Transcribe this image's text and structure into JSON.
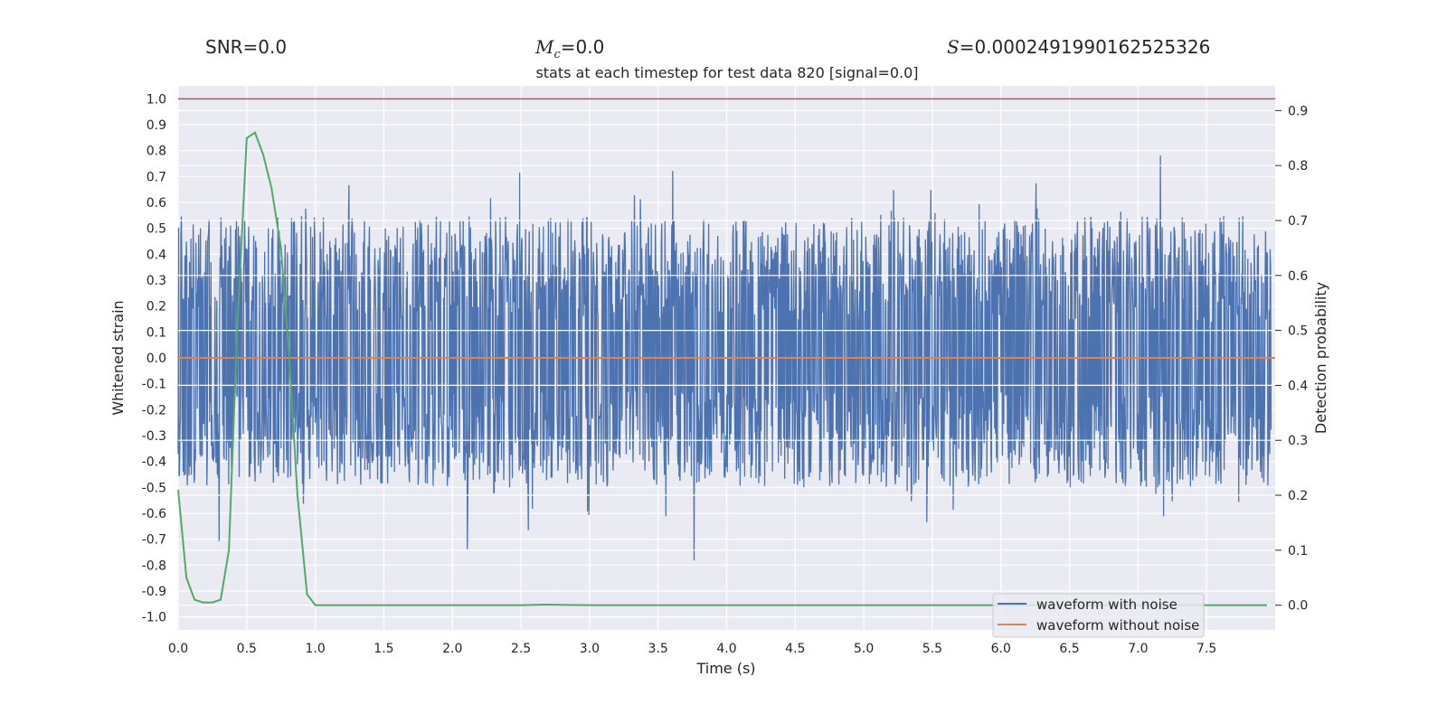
{
  "header": {
    "snr_label": "SNR=0.0",
    "mc_symbol": "M",
    "mc_subscript": "c",
    "mc_value": "=0.0",
    "s_symbol": "S",
    "s_value": "=0.0002491990162525326"
  },
  "chart_data": {
    "type": "line",
    "title": "stats at each timestep for test data 820 [signal=0.0]",
    "xlabel": "Time (s)",
    "ylabel": "Whitened strain",
    "y2label": "Detection probability",
    "xlim": [
      0.0,
      8.0
    ],
    "ylim": [
      -1.05,
      1.05
    ],
    "y2lim": [
      -0.045,
      0.945
    ],
    "xticks": [
      "0.0",
      "0.5",
      "1.0",
      "1.5",
      "2.0",
      "2.5",
      "3.0",
      "3.5",
      "4.0",
      "4.5",
      "5.0",
      "5.5",
      "6.0",
      "6.5",
      "7.0",
      "7.5"
    ],
    "yticks": [
      "1.0",
      "0.9",
      "0.8",
      "0.7",
      "0.6",
      "0.5",
      "0.4",
      "0.3",
      "0.2",
      "0.1",
      "0.0",
      "-0.1",
      "-0.2",
      "-0.3",
      "-0.4",
      "-0.5",
      "-0.6",
      "-0.7",
      "-0.8",
      "-0.9",
      "-1.0"
    ],
    "y2ticks": [
      "0.9",
      "0.8",
      "0.7",
      "0.6",
      "0.5",
      "0.4",
      "0.3",
      "0.2",
      "0.1",
      "0.0"
    ],
    "grid": true,
    "legend_position": "lower-right",
    "colors": {
      "with_noise": "#4c72b0",
      "without_noise": "#dd8452",
      "probability": "#55a868",
      "threshold": "#c44e52",
      "axes_bg": "#eaeaf2"
    },
    "series": [
      {
        "name": "waveform with noise",
        "axis": "left",
        "noise_band_approx": {
          "lower_envelope_typical": -0.5,
          "upper_envelope_typical": 0.55,
          "min": -0.92,
          "max": 1.0
        }
      },
      {
        "name": "waveform without noise",
        "axis": "left",
        "constant_value": 0.0
      },
      {
        "axis": "left",
        "constant_value": 1.0
      },
      {
        "axis": "right",
        "x": [
          0.0,
          0.06,
          0.12,
          0.18,
          0.25,
          0.31,
          0.37,
          0.43,
          0.5,
          0.56,
          0.62,
          0.68,
          0.75,
          0.81,
          0.87,
          0.94,
          1.0,
          1.5,
          2.0,
          2.5,
          2.68,
          3.0,
          3.5,
          4.0,
          5.0,
          6.0,
          7.0,
          7.94
        ],
        "values": [
          0.21,
          0.05,
          0.01,
          0.005,
          0.005,
          0.01,
          0.1,
          0.5,
          0.85,
          0.86,
          0.82,
          0.76,
          0.65,
          0.45,
          0.2,
          0.02,
          0.0,
          0.0,
          0.0,
          0.0,
          0.001,
          0.0,
          0.0,
          0.0,
          0.0,
          0.0,
          0.0,
          0.0
        ]
      }
    ]
  }
}
